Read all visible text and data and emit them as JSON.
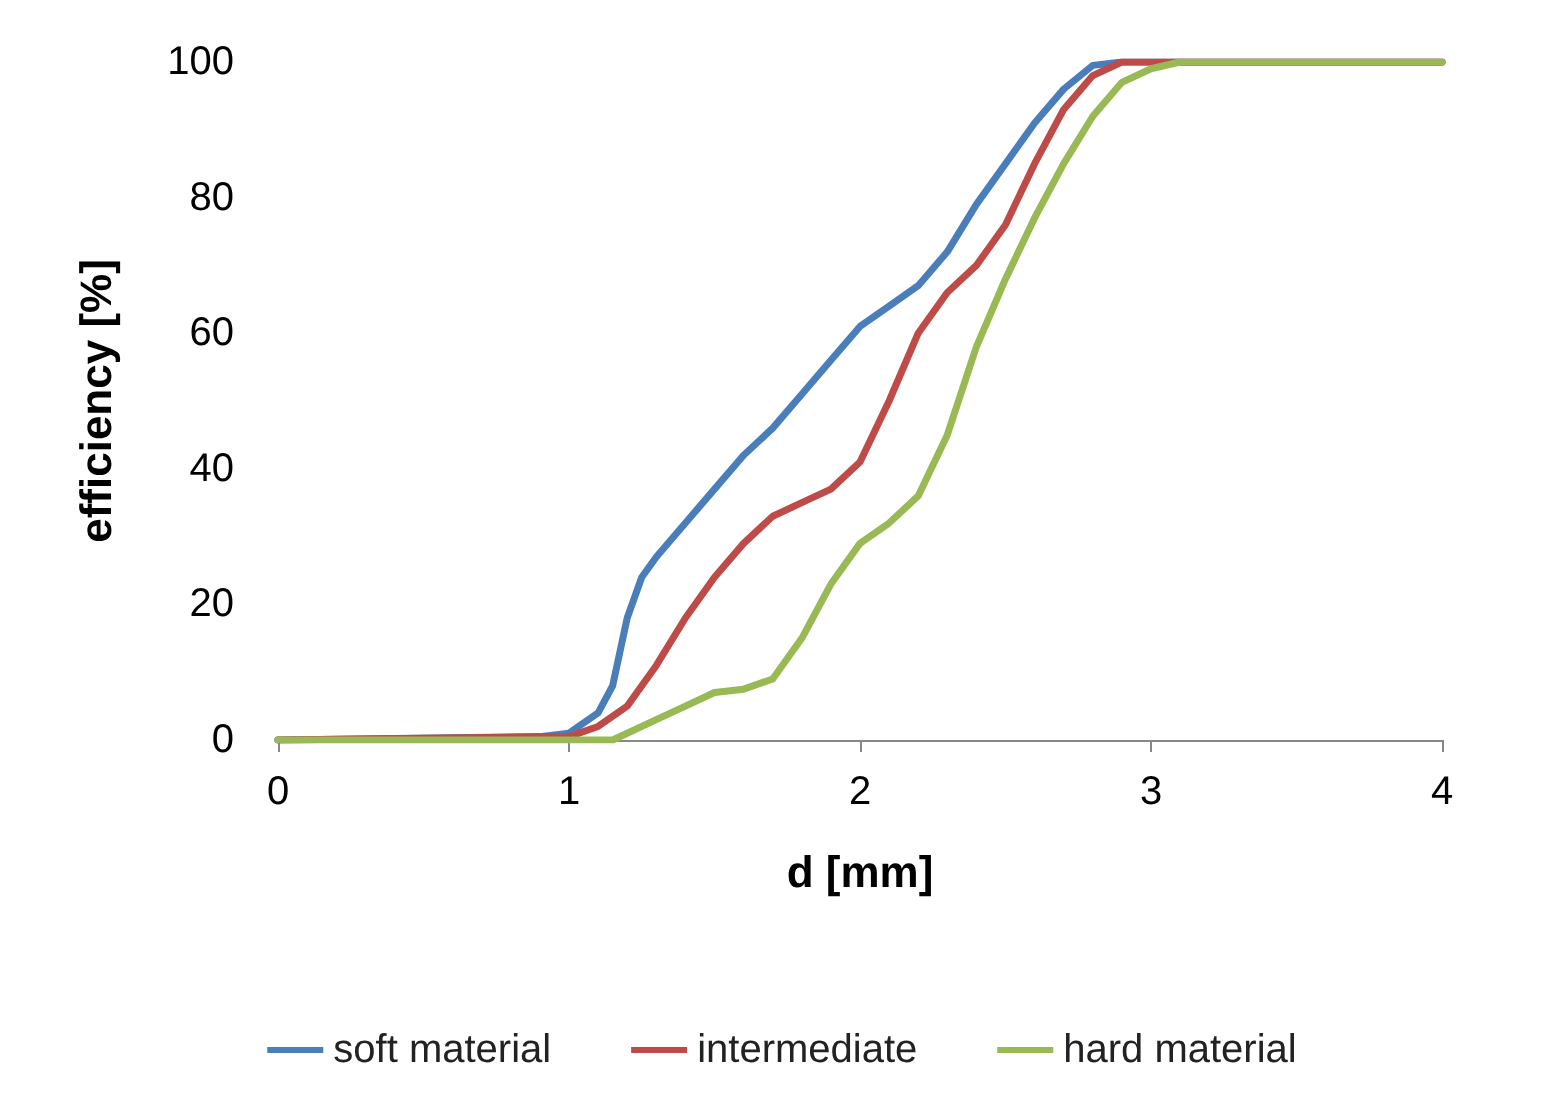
{
  "chart_data": {
    "type": "line",
    "xlabel": "d [mm]",
    "ylabel": "efficiency [%]",
    "xlim": [
      0,
      4
    ],
    "xticks": [
      0,
      1,
      2,
      3,
      4
    ],
    "ylim": [
      0,
      100
    ],
    "yticks": [
      0,
      20,
      40,
      60,
      80,
      100
    ],
    "grid": false,
    "legend": "bottom",
    "marker": "none",
    "line_style": "solid",
    "series": [
      {
        "name": "soft material",
        "color": "#4a7ebb",
        "x": [
          0,
          0.9,
          1.0,
          1.1,
          1.15,
          1.2,
          1.25,
          1.3,
          1.4,
          1.5,
          1.6,
          1.7,
          1.8,
          1.9,
          2.0,
          2.1,
          2.2,
          2.3,
          2.4,
          2.5,
          2.6,
          2.7,
          2.8,
          2.9,
          4
        ],
        "values": [
          0,
          0.5,
          1,
          4,
          8,
          18,
          24,
          27,
          32,
          37,
          42,
          46,
          51,
          56,
          61,
          64,
          67,
          72,
          79,
          85,
          91,
          96,
          99.5,
          100,
          100
        ]
      },
      {
        "name": "intermediate",
        "color": "#be4b48",
        "x": [
          0,
          1.0,
          1.1,
          1.2,
          1.3,
          1.4,
          1.5,
          1.6,
          1.7,
          1.8,
          1.9,
          2.0,
          2.1,
          2.2,
          2.3,
          2.4,
          2.5,
          2.6,
          2.7,
          2.8,
          2.9,
          4
        ],
        "values": [
          0,
          0.5,
          2,
          5,
          11,
          18,
          24,
          29,
          33,
          35,
          37,
          41,
          50,
          60,
          66,
          70,
          76,
          85,
          93,
          98,
          100,
          100
        ]
      },
      {
        "name": "hard material",
        "color": "#98b954",
        "x": [
          0,
          1.15,
          1.2,
          1.3,
          1.4,
          1.5,
          1.6,
          1.7,
          1.8,
          1.9,
          2.0,
          2.1,
          2.2,
          2.3,
          2.4,
          2.5,
          2.6,
          2.7,
          2.8,
          2.9,
          3.0,
          3.1,
          4
        ],
        "values": [
          0,
          0,
          1,
          3,
          5,
          7,
          7.5,
          9,
          15,
          23,
          29,
          32,
          36,
          45,
          58,
          68,
          77,
          85,
          92,
          97,
          99,
          100,
          100
        ]
      }
    ]
  }
}
